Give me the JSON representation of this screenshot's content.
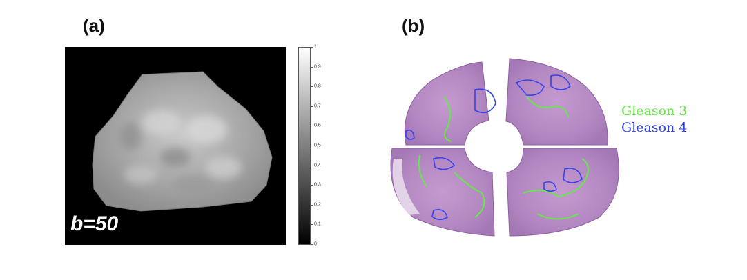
{
  "panels": {
    "a_label": "(a)",
    "b_label": "(b)"
  },
  "mri": {
    "b_value_label": "b=50",
    "colorbar_ticks": [
      "1",
      "0.9",
      "0.8",
      "0.7",
      "0.6",
      "0.5",
      "0.4",
      "0.3",
      "0.2",
      "0.1",
      "0"
    ]
  },
  "histology": {
    "legend": [
      {
        "label": "Gleason 3",
        "color": "#66e84a"
      },
      {
        "label": "Gleason 4",
        "color": "#3344ee"
      }
    ],
    "tissue_color": "#b58ac2"
  }
}
